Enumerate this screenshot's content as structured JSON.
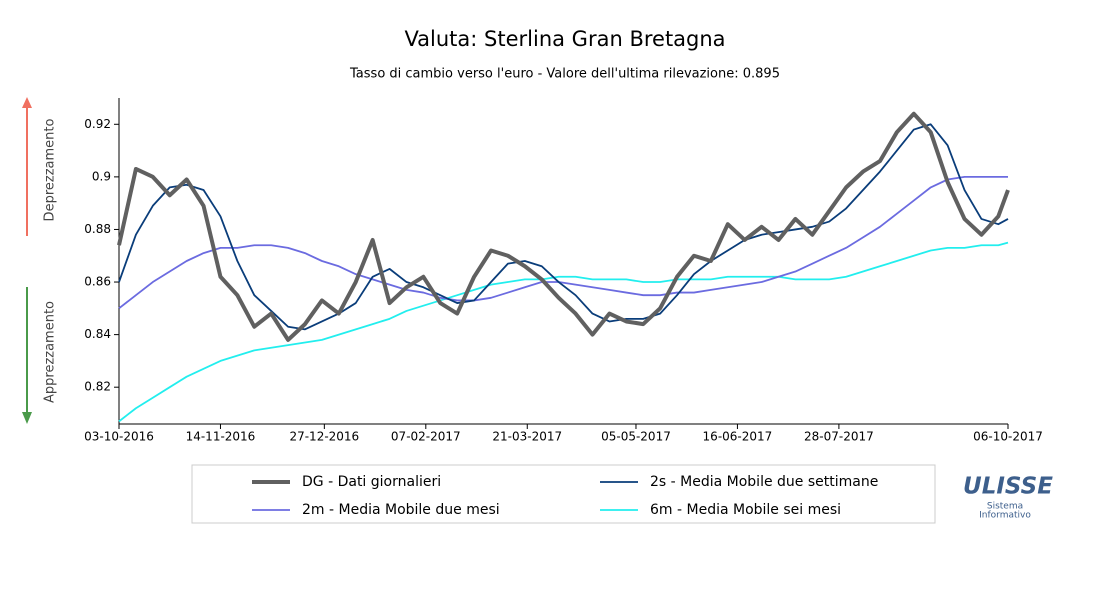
{
  "chart_data": {
    "type": "line",
    "title": "Valuta: Sterlina Gran Bretagna",
    "subtitle": "Tasso di cambio verso l'euro - Valore dell'ultima rilevazione: 0.895",
    "annotations": {
      "up": "Deprezzamento",
      "down": "Apprezzamento"
    },
    "logo": {
      "name": "ULISSE",
      "line1": "Sistema",
      "line2": "Informativo"
    },
    "x": [
      "2016-10-03",
      "2016-10-10",
      "2016-10-17",
      "2016-10-24",
      "2016-10-31",
      "2016-11-07",
      "2016-11-14",
      "2016-11-21",
      "2016-11-28",
      "2016-12-05",
      "2016-12-12",
      "2016-12-19",
      "2016-12-26",
      "2017-01-02",
      "2017-01-09",
      "2017-01-16",
      "2017-01-23",
      "2017-01-30",
      "2017-02-06",
      "2017-02-13",
      "2017-02-20",
      "2017-02-27",
      "2017-03-06",
      "2017-03-13",
      "2017-03-20",
      "2017-03-27",
      "2017-04-03",
      "2017-04-10",
      "2017-04-17",
      "2017-04-24",
      "2017-05-01",
      "2017-05-08",
      "2017-05-15",
      "2017-05-22",
      "2017-05-29",
      "2017-06-05",
      "2017-06-12",
      "2017-06-19",
      "2017-06-26",
      "2017-07-03",
      "2017-07-10",
      "2017-07-17",
      "2017-07-24",
      "2017-07-31",
      "2017-08-07",
      "2017-08-14",
      "2017-08-21",
      "2017-08-28",
      "2017-09-04",
      "2017-09-11",
      "2017-09-18",
      "2017-09-25",
      "2017-10-02",
      "2017-10-06"
    ],
    "series": [
      {
        "name": "DG - Dati giornalieri",
        "color": "#606060",
        "width": 4,
        "values": [
          0.874,
          0.903,
          0.9,
          0.893,
          0.899,
          0.889,
          0.862,
          0.855,
          0.843,
          0.848,
          0.838,
          0.844,
          0.853,
          0.848,
          0.86,
          0.876,
          0.852,
          0.858,
          0.862,
          0.852,
          0.848,
          0.862,
          0.872,
          0.87,
          0.866,
          0.861,
          0.854,
          0.848,
          0.84,
          0.848,
          0.845,
          0.844,
          0.85,
          0.862,
          0.87,
          0.868,
          0.882,
          0.876,
          0.881,
          0.876,
          0.884,
          0.878,
          0.887,
          0.896,
          0.902,
          0.906,
          0.917,
          0.924,
          0.917,
          0.898,
          0.884,
          0.878,
          0.885,
          0.895
        ]
      },
      {
        "name": "2s - Media Mobile due settimane",
        "color": "#0a3d7a",
        "width": 1.8,
        "values": [
          0.86,
          0.878,
          0.889,
          0.896,
          0.897,
          0.895,
          0.885,
          0.868,
          0.855,
          0.849,
          0.843,
          0.842,
          0.845,
          0.848,
          0.852,
          0.862,
          0.865,
          0.86,
          0.858,
          0.855,
          0.852,
          0.853,
          0.86,
          0.867,
          0.868,
          0.866,
          0.86,
          0.855,
          0.848,
          0.845,
          0.846,
          0.846,
          0.848,
          0.855,
          0.863,
          0.868,
          0.872,
          0.876,
          0.878,
          0.879,
          0.88,
          0.881,
          0.883,
          0.888,
          0.895,
          0.902,
          0.91,
          0.918,
          0.92,
          0.912,
          0.895,
          0.884,
          0.882,
          0.884
        ]
      },
      {
        "name": "2m - Media Mobile due mesi",
        "color": "#6b6be0",
        "width": 1.8,
        "values": [
          0.85,
          0.855,
          0.86,
          0.864,
          0.868,
          0.871,
          0.873,
          0.873,
          0.874,
          0.874,
          0.873,
          0.871,
          0.868,
          0.866,
          0.863,
          0.861,
          0.859,
          0.857,
          0.856,
          0.854,
          0.853,
          0.853,
          0.854,
          0.856,
          0.858,
          0.86,
          0.86,
          0.859,
          0.858,
          0.857,
          0.856,
          0.855,
          0.855,
          0.856,
          0.856,
          0.857,
          0.858,
          0.859,
          0.86,
          0.862,
          0.864,
          0.867,
          0.87,
          0.873,
          0.877,
          0.881,
          0.886,
          0.891,
          0.896,
          0.899,
          0.9,
          0.9,
          0.9,
          0.9
        ]
      },
      {
        "name": "6m - Media Mobile sei mesi",
        "color": "#22eeee",
        "width": 1.8,
        "values": [
          0.807,
          0.812,
          0.816,
          0.82,
          0.824,
          0.827,
          0.83,
          0.832,
          0.834,
          0.835,
          0.836,
          0.837,
          0.838,
          0.84,
          0.842,
          0.844,
          0.846,
          0.849,
          0.851,
          0.853,
          0.855,
          0.857,
          0.859,
          0.86,
          0.861,
          0.861,
          0.862,
          0.862,
          0.861,
          0.861,
          0.861,
          0.86,
          0.86,
          0.861,
          0.861,
          0.861,
          0.862,
          0.862,
          0.862,
          0.862,
          0.861,
          0.861,
          0.861,
          0.862,
          0.864,
          0.866,
          0.868,
          0.87,
          0.872,
          0.873,
          0.873,
          0.874,
          0.874,
          0.875
        ]
      }
    ],
    "xlim": [
      "2016-10-03",
      "2017-10-06"
    ],
    "xticks": [
      {
        "value": "2016-10-03",
        "label": "03-10-2016"
      },
      {
        "value": "2016-11-14",
        "label": "14-11-2016"
      },
      {
        "value": "2016-12-27",
        "label": "27-12-2016"
      },
      {
        "value": "2017-02-07",
        "label": "07-02-2017"
      },
      {
        "value": "2017-03-21",
        "label": "21-03-2017"
      },
      {
        "value": "2017-05-05",
        "label": "05-05-2017"
      },
      {
        "value": "2017-06-16",
        "label": "16-06-2017"
      },
      {
        "value": "2017-07-28",
        "label": "28-07-2017"
      },
      {
        "value": "2017-10-06",
        "label": "06-10-2017"
      }
    ],
    "ylim": [
      0.806,
      0.93
    ],
    "yticks": [
      0.82,
      0.84,
      0.86,
      0.88,
      0.9,
      0.92
    ],
    "grid": false
  }
}
